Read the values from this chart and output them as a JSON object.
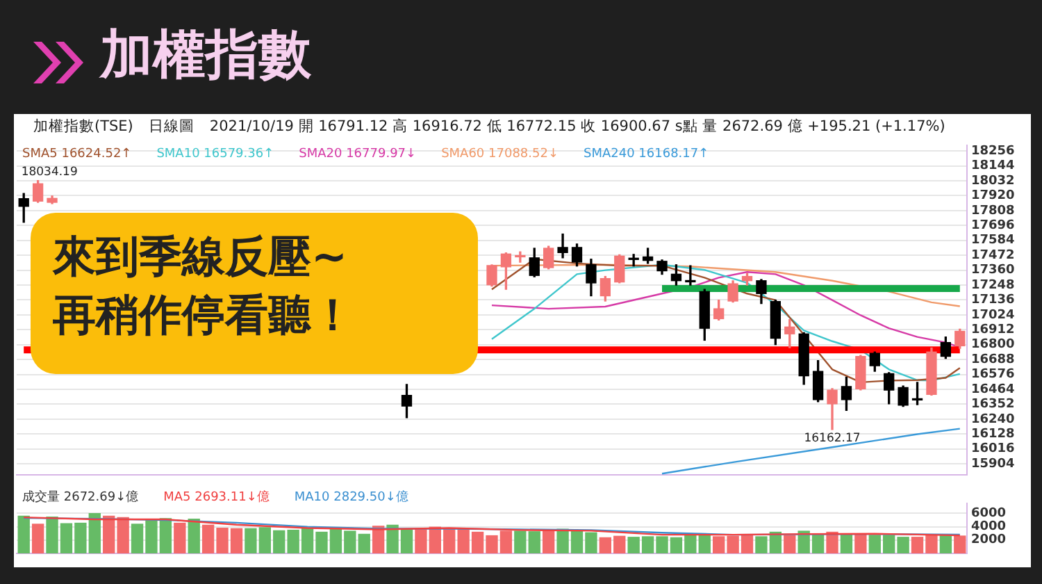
{
  "chart_data": [
    {
      "type": "candlestick",
      "title": "加權指數",
      "subtitle": "加權指數(TSE)　日線圖　2021/10/19 開 16791.12 高 16916.72 低 16772.15 收 16900.67 s點 量 2672.69 億 +195.21 (+1.17%)",
      "categories": [
        null,
        null,
        null,
        null,
        null,
        null,
        null,
        null,
        null,
        null,
        null,
        null,
        null,
        null,
        null,
        null,
        null,
        null,
        null,
        null,
        null,
        null,
        null,
        null,
        null,
        null,
        null,
        null,
        null,
        null,
        null,
        null,
        null,
        null,
        null,
        null,
        null,
        null,
        null,
        null,
        null,
        null,
        null,
        null,
        null,
        null,
        null,
        null,
        null,
        null,
        null,
        null,
        null,
        null,
        null,
        null,
        null,
        null,
        null,
        null,
        null,
        null,
        null,
        null,
        null,
        null,
        null
      ],
      "ohlc": [
        [
          17898,
          17937,
          17720,
          17840
        ],
        [
          17879,
          18034.19,
          17870,
          18010
        ],
        [
          17870,
          17918,
          17860,
          17900
        ],
        null,
        null,
        null,
        null,
        null,
        null,
        null,
        null,
        null,
        null,
        null,
        null,
        null,
        null,
        null,
        null,
        null,
        null,
        null,
        null,
        null,
        null,
        null,
        null,
        [
          16419,
          16501,
          16251,
          16338
        ],
        null,
        null,
        null,
        null,
        null,
        [
          17250,
          17400,
          17240,
          17395
        ],
        [
          17385,
          17490,
          17216,
          17482
        ],
        [
          17460,
          17498,
          17420,
          17470
        ],
        [
          17453,
          17525,
          17310,
          17320
        ],
        [
          17379,
          17540,
          17370,
          17525
        ],
        [
          17531,
          17632,
          17453,
          17492
        ],
        [
          17531,
          17557,
          17391,
          17421
        ],
        [
          17401,
          17443,
          17167,
          17264
        ],
        [
          17167,
          17313,
          17128,
          17297
        ],
        [
          17271,
          17476,
          17265,
          17466
        ],
        [
          17446,
          17479,
          17391,
          17440
        ],
        [
          17460,
          17525,
          17411,
          17433
        ],
        [
          17427,
          17437,
          17329,
          17355
        ],
        [
          17330,
          17401,
          17248,
          17281
        ],
        [
          17276,
          17394,
          17248,
          17272
        ],
        [
          17199,
          17216,
          16833,
          16923
        ],
        [
          16995,
          17135,
          16985,
          17070
        ],
        [
          17128,
          17280,
          17120,
          17258
        ],
        [
          17281,
          17336,
          17248,
          17313
        ],
        [
          17281,
          17290,
          17109,
          17184
        ],
        [
          17125,
          17135,
          16800,
          16848
        ],
        [
          16881,
          16989,
          16777,
          16933
        ],
        [
          16881,
          16890,
          16501,
          16565
        ],
        [
          16599,
          16680,
          16371,
          16387
        ],
        [
          16355,
          16470,
          16162.17,
          16458
        ],
        [
          16485,
          16556,
          16306,
          16387
        ],
        [
          16468,
          16720,
          16460,
          16712
        ],
        [
          16735,
          16745,
          16599,
          16641
        ],
        [
          16582,
          16590,
          16355,
          16458
        ],
        [
          16478,
          16490,
          16335,
          16345
        ],
        [
          16390,
          16517,
          16348,
          16384
        ],
        [
          16426,
          16775,
          16420,
          16745
        ],
        [
          16816,
          16858,
          16696,
          16712
        ],
        [
          16791.12,
          16916.72,
          16772.15,
          16900.67
        ]
      ],
      "colors": [
        "#000000",
        "#f47676",
        "#f47676",
        null,
        null,
        null,
        null,
        null,
        null,
        null,
        null,
        null,
        null,
        null,
        null,
        null,
        null,
        null,
        null,
        null,
        null,
        null,
        null,
        null,
        null,
        null,
        null,
        "#000000",
        null,
        null,
        null,
        null,
        null,
        "#f47676",
        "#f47676",
        "#f47676",
        "#000000",
        "#f47676",
        "#000000",
        "#000000",
        "#000000",
        "#f47676",
        "#f47676",
        "#000000",
        "#000000",
        "#000000",
        "#000000",
        "#000000",
        "#000000",
        "#f47676",
        "#f47676",
        "#f47676",
        "#000000",
        "#000000",
        "#f47676",
        "#000000",
        "#000000",
        "#f47676",
        "#000000",
        "#f47676",
        "#000000",
        "#000000",
        "#000000",
        "#000000",
        "#f47676",
        "#000000",
        "#f47676"
      ],
      "series": [
        {
          "type": "line",
          "color": "#ff0000",
          "values": [
            16761,
            null,
            null,
            null,
            null,
            null,
            null,
            null,
            null,
            null,
            null,
            null,
            null,
            null,
            null,
            null,
            null,
            null,
            null,
            null,
            null,
            null,
            null,
            null,
            null,
            null,
            null,
            null,
            null,
            null,
            null,
            null,
            null,
            null,
            null,
            null,
            null,
            null,
            null,
            null,
            null,
            null,
            null,
            null,
            null,
            null,
            null,
            null,
            null,
            null,
            null,
            null,
            null,
            null,
            null,
            null,
            null,
            null,
            null,
            null,
            null,
            null,
            null,
            null,
            null,
            null,
            16761
          ]
        },
        {
          "type": "line",
          "color": "#17a84a",
          "values": [
            null,
            null,
            null,
            null,
            null,
            null,
            null,
            null,
            null,
            null,
            null,
            null,
            null,
            null,
            null,
            null,
            null,
            null,
            null,
            null,
            null,
            null,
            null,
            null,
            null,
            null,
            null,
            null,
            null,
            null,
            null,
            null,
            null,
            null,
            null,
            null,
            null,
            null,
            null,
            null,
            null,
            null,
            null,
            null,
            null,
            17222,
            null,
            null,
            null,
            null,
            null,
            null,
            null,
            null,
            null,
            null,
            null,
            null,
            null,
            null,
            null,
            null,
            null,
            null,
            null,
            null,
            17222
          ]
        },
        {
          "type": "line",
          "name": "SMA5 16624.52↑",
          "color": "#a0522d",
          "values": [
            null,
            null,
            null,
            null,
            null,
            null,
            null,
            null,
            null,
            null,
            null,
            null,
            null,
            null,
            null,
            null,
            null,
            null,
            null,
            null,
            null,
            null,
            null,
            null,
            null,
            null,
            null,
            null,
            null,
            null,
            null,
            null,
            null,
            17215,
            null,
            null,
            17443,
            null,
            null,
            17411,
            null,
            null,
            17394,
            null,
            null,
            17394,
            null,
            null,
            17304,
            null,
            null,
            17184,
            null,
            17135,
            null,
            16874,
            null,
            16614,
            null,
            16517,
            null,
            16530,
            null,
            16533,
            null,
            16550,
            16624.52
          ]
        },
        {
          "type": "line",
          "name": "SMA10 16579.36↑",
          "color": "#3fc6cc",
          "values": [
            null,
            null,
            null,
            null,
            null,
            null,
            null,
            null,
            null,
            null,
            null,
            null,
            null,
            null,
            null,
            null,
            null,
            null,
            null,
            null,
            null,
            null,
            null,
            null,
            null,
            null,
            null,
            null,
            null,
            null,
            null,
            null,
            null,
            16842,
            null,
            null,
            17070,
            null,
            null,
            17330,
            null,
            17360,
            null,
            null,
            null,
            17401,
            null,
            null,
            17362,
            null,
            null,
            17265,
            null,
            17102,
            null,
            16907,
            null,
            16826,
            null,
            16760,
            null,
            16614,
            null,
            16533,
            16530,
            null,
            16579.36
          ]
        },
        {
          "type": "line",
          "name": "SMA20 16779.97↓",
          "color": "#d63aa6",
          "values": [
            null,
            null,
            null,
            null,
            null,
            null,
            null,
            null,
            null,
            null,
            null,
            null,
            null,
            null,
            null,
            null,
            null,
            null,
            null,
            null,
            null,
            null,
            null,
            null,
            null,
            null,
            null,
            null,
            null,
            null,
            null,
            null,
            null,
            17096,
            null,
            null,
            null,
            17070,
            null,
            null,
            null,
            17086,
            null,
            null,
            null,
            17184,
            null,
            17232,
            null,
            17304,
            null,
            17346,
            null,
            17330,
            null,
            17248,
            null,
            17135,
            null,
            17021,
            null,
            16923,
            null,
            16858,
            null,
            16816,
            16779.97
          ]
        },
        {
          "type": "line",
          "name": "SMA60 17088.52↓",
          "color": "#f09a6a",
          "values": [
            null,
            null,
            null,
            null,
            null,
            null,
            null,
            null,
            null,
            null,
            null,
            null,
            null,
            null,
            null,
            null,
            null,
            null,
            null,
            null,
            null,
            null,
            null,
            null,
            null,
            null,
            null,
            null,
            null,
            null,
            null,
            null,
            null,
            17394,
            null,
            null,
            null,
            null,
            null,
            null,
            null,
            17401,
            null,
            null,
            null,
            null,
            null,
            17388,
            null,
            null,
            null,
            null,
            null,
            17346,
            null,
            null,
            null,
            17281,
            null,
            null,
            null,
            17199,
            null,
            null,
            17118,
            null,
            17088.52
          ]
        },
        {
          "type": "line",
          "name": "SMA240 16168.17↑",
          "color": "#3a9ad9",
          "values": [
            null,
            null,
            null,
            null,
            null,
            null,
            null,
            null,
            null,
            null,
            null,
            null,
            null,
            null,
            null,
            null,
            null,
            null,
            null,
            null,
            null,
            null,
            null,
            null,
            null,
            null,
            null,
            null,
            null,
            null,
            null,
            null,
            null,
            null,
            null,
            null,
            null,
            null,
            null,
            null,
            null,
            null,
            null,
            null,
            null,
            15830,
            null,
            null,
            null,
            null,
            15916,
            null,
            null,
            null,
            null,
            null,
            null,
            16029,
            null,
            null,
            null,
            null,
            null,
            16127,
            null,
            null,
            16168.17
          ]
        }
      ],
      "ylim": [
        15820,
        18300
      ],
      "yticks": [
        15904,
        16016,
        16128,
        16240,
        16352,
        16464,
        16576,
        16688,
        16800,
        16912,
        17024,
        17136,
        17248,
        17360,
        17472,
        17584,
        17696,
        17808,
        17920,
        18032,
        18144,
        18256
      ],
      "grid": "y",
      "legend": "top left",
      "tick_labels": "y",
      "annotations": [
        "來到季線反壓~\n再稍作停看聽！",
        {
          "text": "18034.19",
          "y": 18034.19
        },
        {
          "text": "16162.17",
          "y": 16162.17
        }
      ]
    },
    {
      "type": "bar",
      "categories": [
        null,
        null,
        null,
        null,
        null,
        null,
        null,
        null,
        null,
        null,
        null,
        null,
        null,
        null,
        null,
        null,
        null,
        null,
        null,
        null,
        null,
        null,
        null,
        null,
        null,
        null,
        null,
        null,
        null,
        null,
        null,
        null,
        null,
        null,
        null,
        null,
        null,
        null,
        null,
        null,
        null,
        null,
        null,
        null,
        null,
        null,
        null,
        null,
        null,
        null,
        null,
        null,
        null,
        null,
        null,
        null,
        null,
        null,
        null,
        null,
        null,
        null,
        null,
        null,
        null,
        null,
        null
      ],
      "series": [
        {
          "name": "成交量 2672.69↓億",
          "color": "#333333",
          "colors": [
            "#66bb66",
            "#f26a6a",
            "#66bb66",
            "#66bb66",
            "#66bb66",
            "#66bb66",
            "#f26a6a",
            "#f26a6a",
            "#66bb66",
            "#66bb66",
            "#66bb66",
            "#f26a6a",
            "#66bb66",
            "#f26a6a",
            "#f26a6a",
            "#f26a6a",
            "#66bb66",
            "#66bb66",
            "#66bb66",
            "#66bb66",
            "#66bb66",
            "#66bb66",
            "#66bb66",
            "#66bb66",
            "#66bb66",
            "#f26a6a",
            "#66bb66",
            "#66bb66",
            "#f26a6a",
            "#f26a6a",
            "#f26a6a",
            "#f26a6a",
            "#f26a6a",
            "#f26a6a",
            "#f26a6a",
            "#66bb66",
            "#66bb66",
            "#f26a6a",
            "#66bb66",
            "#66bb66",
            "#66bb66",
            "#f26a6a",
            "#f26a6a",
            "#66bb66",
            "#66bb66",
            "#66bb66",
            "#66bb66",
            "#66bb66",
            "#66bb66",
            "#f26a6a",
            "#f26a6a",
            "#f26a6a",
            "#66bb66",
            "#66bb66",
            "#f26a6a",
            "#66bb66",
            "#66bb66",
            "#f26a6a",
            "#66bb66",
            "#f26a6a",
            "#66bb66",
            "#66bb66",
            "#66bb66",
            "#f26a6a",
            "#f26a6a",
            "#66bb66",
            "#f26a6a"
          ],
          "values": [
            5660,
            4450,
            5510,
            4530,
            4600,
            6040,
            5660,
            5440,
            4450,
            4980,
            5290,
            4600,
            5210,
            4300,
            3850,
            3780,
            3780,
            3930,
            3470,
            3550,
            3850,
            3250,
            3700,
            3400,
            2940,
            4150,
            4300,
            3620,
            3620,
            4000,
            3780,
            3700,
            3250,
            2720,
            3400,
            3400,
            3320,
            3550,
            3700,
            3400,
            3170,
            2420,
            2640,
            2490,
            2570,
            2570,
            2420,
            3020,
            2790,
            2570,
            2640,
            2790,
            2570,
            3250,
            2720,
            3400,
            2940,
            3250,
            2940,
            2870,
            2790,
            2790,
            2490,
            2490,
            2790,
            2790,
            2672.69
          ]
        },
        {
          "type": "line",
          "name": "MA5 2693.11↓億",
          "color": "#f04040",
          "values": [
            5400,
            null,
            null,
            null,
            null,
            5100,
            null,
            null,
            null,
            null,
            5100,
            null,
            null,
            null,
            null,
            4300,
            null,
            null,
            null,
            null,
            3800,
            null,
            null,
            null,
            null,
            3600,
            null,
            null,
            null,
            null,
            3800,
            null,
            null,
            null,
            null,
            3500,
            null,
            null,
            null,
            null,
            3400,
            null,
            null,
            null,
            null,
            2800,
            null,
            null,
            null,
            null,
            2800,
            null,
            null,
            null,
            null,
            2900,
            null,
            null,
            null,
            null,
            2950,
            null,
            null,
            null,
            null,
            null,
            2693.11
          ]
        },
        {
          "type": "line",
          "name": "MA10 2829.50↓億",
          "color": "#3a8fd0",
          "values": [
            5300,
            null,
            null,
            null,
            null,
            5200,
            null,
            null,
            null,
            null,
            5000,
            null,
            null,
            null,
            null,
            4600,
            null,
            null,
            null,
            null,
            4000,
            null,
            null,
            null,
            null,
            3700,
            null,
            null,
            null,
            null,
            3700,
            null,
            null,
            null,
            null,
            3600,
            null,
            null,
            null,
            null,
            3500,
            null,
            null,
            null,
            null,
            3100,
            null,
            null,
            null,
            null,
            2800,
            null,
            null,
            null,
            null,
            2850,
            null,
            null,
            null,
            null,
            2900,
            null,
            null,
            null,
            null,
            null,
            2829.5
          ]
        }
      ],
      "ylim": [
        0,
        7500
      ],
      "yticks": [
        2000,
        4000,
        6000
      ],
      "grid": "y",
      "legend": "top left",
      "tick_labels": "y"
    }
  ]
}
